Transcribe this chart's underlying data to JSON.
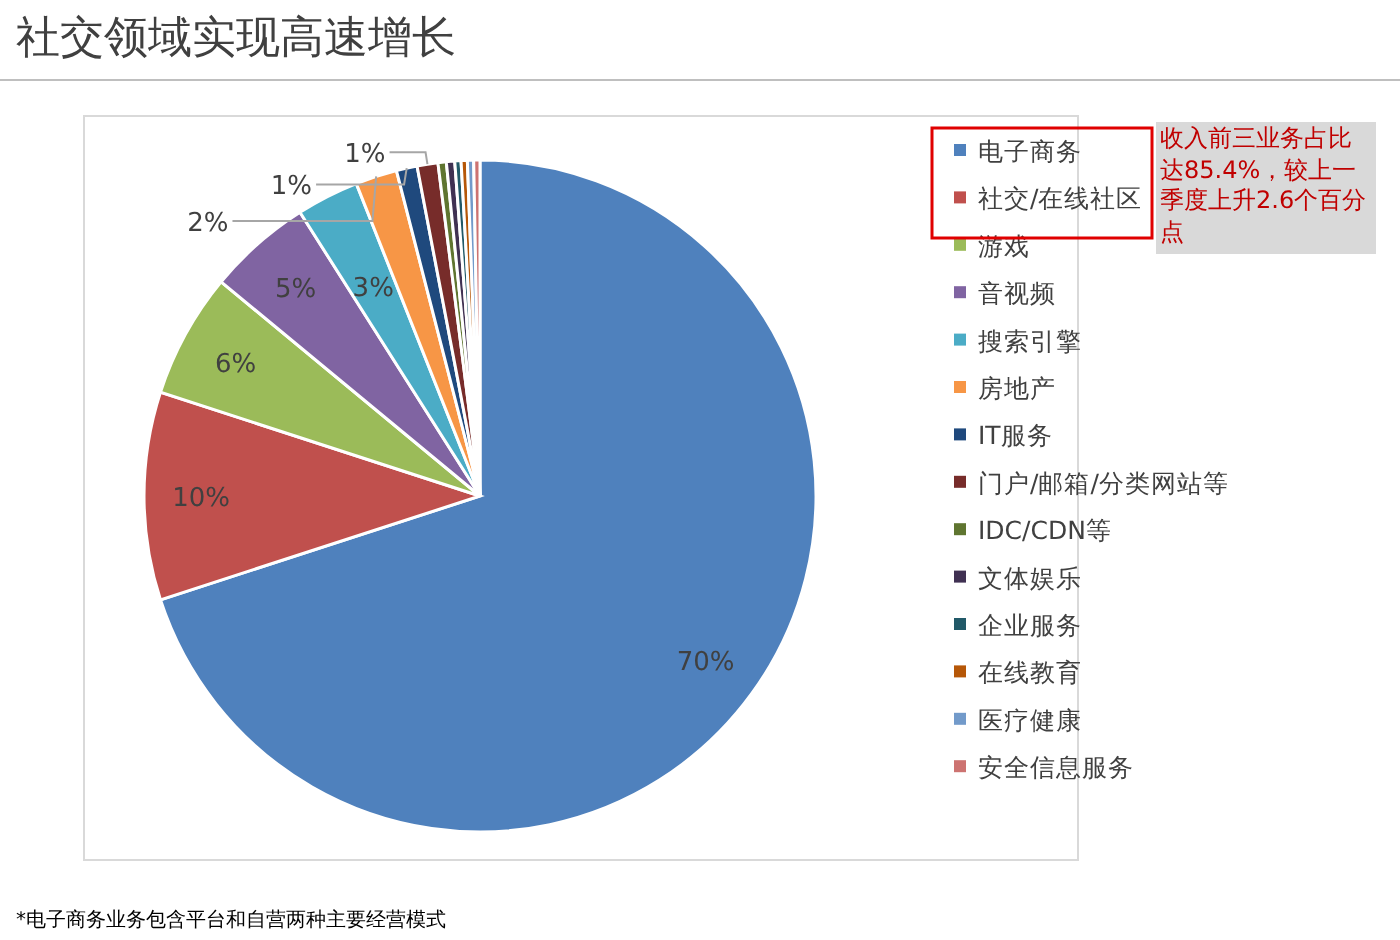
{
  "chart_data": {
    "type": "pie",
    "title": "社交领域实现高速增长",
    "categories": [
      "电子商务",
      "社交/在线社区",
      "游戏",
      "音视频",
      "搜索引擎",
      "房地产",
      "IT服务",
      "门户/邮箱/分类网站等",
      "IDC/CDN等",
      "文体娱乐",
      "企业服务",
      "在线教育",
      "医疗健康",
      "安全信息服务"
    ],
    "values": [
      70,
      10,
      6,
      5,
      3,
      2,
      1,
      1,
      0.4,
      0.4,
      0.3,
      0.3,
      0.3,
      0.3
    ],
    "value_labels": [
      "70%",
      "10%",
      "6%",
      "5%",
      "3%",
      "2%",
      "1%",
      "1%",
      null,
      null,
      null,
      null,
      null,
      null
    ],
    "colors": [
      "#4f81bd",
      "#c0504d",
      "#9bbb59",
      "#8064a2",
      "#4bacc6",
      "#f79646",
      "#1f497d",
      "#772c2a",
      "#5f7530",
      "#403152",
      "#215968",
      "#b65708",
      "#729aca",
      "#cd7371"
    ],
    "legend": "right",
    "annotations": [
      "收入前三业务占比达85.4%，较上一季度上升2.6个百分点",
      "*电子商务业务包含平台和自营两种主要经营模式"
    ]
  }
}
